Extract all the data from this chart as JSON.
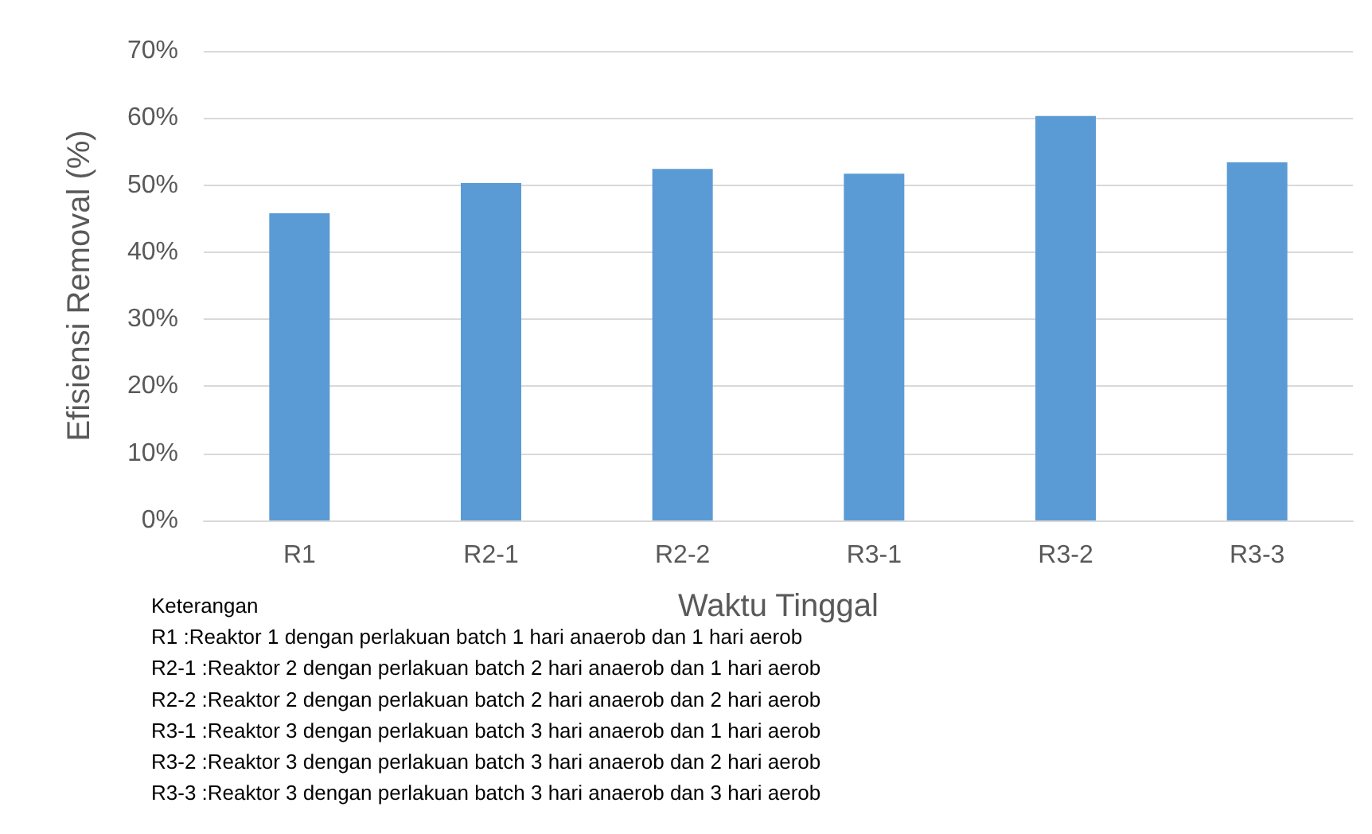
{
  "chart_data": {
    "type": "bar",
    "categories": [
      "R1",
      "R2-1",
      "R2-2",
      "R3-1",
      "R3-2",
      "R3-3"
    ],
    "values": [
      45.8,
      50.3,
      52.4,
      51.7,
      60.3,
      53.4
    ],
    "color": "#5b9bd5",
    "xlabel": "Waktu Tinggal",
    "ylabel": "Efisiensi Removal (%)",
    "ylim": [
      0,
      70
    ],
    "yticks": [
      {
        "value": 0,
        "label": "0%"
      },
      {
        "value": 10,
        "label": "10%"
      },
      {
        "value": 20,
        "label": "20%"
      },
      {
        "value": 30,
        "label": "30%"
      },
      {
        "value": 40,
        "label": "40%"
      },
      {
        "value": 50,
        "label": "50%"
      },
      {
        "value": 60,
        "label": "60%"
      },
      {
        "value": 70,
        "label": "70%"
      }
    ],
    "grid": "y",
    "annotations": [
      "Keterangan",
      "R1 :Reaktor 1 dengan perlakuan batch 1 hari anaerob dan 1 hari aerob",
      "R2-1 :Reaktor 2 dengan perlakuan batch 2 hari anaerob dan 1 hari aerob",
      "R2-2 :Reaktor 2 dengan perlakuan batch 2 hari anaerob dan 2 hari aerob",
      "R3-1 :Reaktor 3 dengan perlakuan batch 3 hari anaerob dan 1 hari aerob",
      "R3-2 :Reaktor 3 dengan perlakuan batch 3 hari anaerob dan 2 hari aerob",
      "R3-3 :Reaktor 3 dengan perlakuan batch 3 hari anaerob dan 3 hari aerob"
    ]
  }
}
